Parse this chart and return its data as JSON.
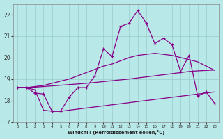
{
  "xlabel": "Windchill (Refroidissement éolien,°C)",
  "background_color": "#b8e8e8",
  "grid_color": "#99cccc",
  "line_color": "#880088",
  "x": [
    0,
    1,
    2,
    3,
    4,
    5,
    6,
    7,
    8,
    9,
    10,
    11,
    12,
    13,
    14,
    15,
    16,
    17,
    18,
    19,
    20,
    21,
    22,
    23
  ],
  "line1": [
    18.6,
    18.6,
    18.35,
    18.3,
    17.5,
    17.5,
    18.15,
    18.6,
    18.6,
    19.15,
    20.4,
    20.05,
    21.45,
    21.6,
    22.2,
    21.6,
    20.65,
    20.9,
    20.6,
    19.35,
    20.1,
    18.2,
    18.4,
    17.85
  ],
  "line2": [
    18.6,
    18.6,
    18.65,
    18.7,
    18.8,
    18.9,
    19.0,
    19.15,
    19.3,
    19.45,
    19.6,
    19.7,
    19.85,
    20.0,
    20.1,
    20.15,
    20.2,
    20.15,
    20.1,
    20.0,
    19.9,
    19.8,
    19.6,
    19.4
  ],
  "line3": [
    18.6,
    18.6,
    18.62,
    18.65,
    18.68,
    18.71,
    18.74,
    18.77,
    18.8,
    18.84,
    18.88,
    18.92,
    18.96,
    19.0,
    19.05,
    19.1,
    19.15,
    19.2,
    19.25,
    19.3,
    19.35,
    19.38,
    19.4,
    19.42
  ],
  "line4": [
    18.6,
    18.6,
    18.5,
    17.55,
    17.5,
    17.5,
    17.55,
    17.6,
    17.65,
    17.7,
    17.75,
    17.8,
    17.85,
    17.9,
    17.95,
    18.0,
    18.05,
    18.1,
    18.15,
    18.2,
    18.25,
    18.3,
    18.35,
    18.4
  ],
  "ylim": [
    17.0,
    22.5
  ],
  "yticks": [
    17,
    18,
    19,
    20,
    21,
    22
  ],
  "xticks": [
    0,
    1,
    2,
    3,
    4,
    5,
    6,
    7,
    8,
    9,
    10,
    11,
    12,
    13,
    14,
    15,
    16,
    17,
    18,
    19,
    20,
    21,
    22,
    23
  ]
}
